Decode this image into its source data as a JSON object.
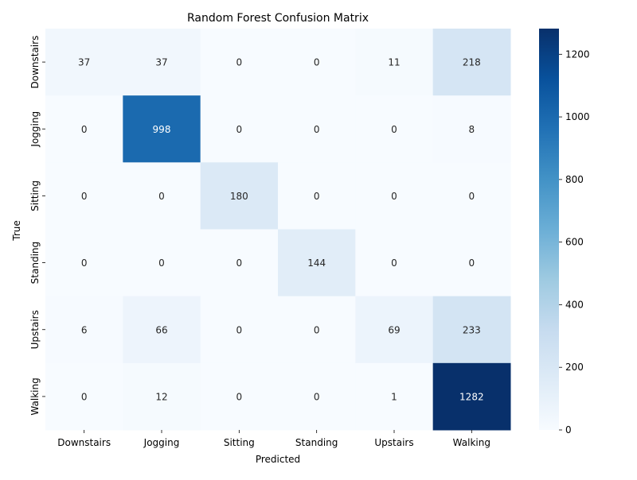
{
  "chart_data": {
    "type": "heatmap",
    "title": "Random Forest Confusion Matrix",
    "xlabel": "Predicted",
    "ylabel": "True",
    "x_categories": [
      "Downstairs",
      "Jogging",
      "Sitting",
      "Standing",
      "Upstairs",
      "Walking"
    ],
    "y_categories": [
      "Downstairs",
      "Jogging",
      "Sitting",
      "Standing",
      "Upstairs",
      "Walking"
    ],
    "values": [
      [
        37,
        37,
        0,
        0,
        11,
        218
      ],
      [
        0,
        998,
        0,
        0,
        0,
        8
      ],
      [
        0,
        0,
        180,
        0,
        0,
        0
      ],
      [
        0,
        0,
        0,
        144,
        0,
        0
      ],
      [
        6,
        66,
        0,
        0,
        69,
        233
      ],
      [
        0,
        12,
        0,
        0,
        1,
        1282
      ]
    ],
    "colormap": "Blues",
    "colorbar": {
      "range": [
        0,
        1282
      ],
      "ticks": [
        0,
        200,
        400,
        600,
        800,
        1000,
        1200
      ]
    },
    "grid": false,
    "legend": "colorbar-right"
  }
}
